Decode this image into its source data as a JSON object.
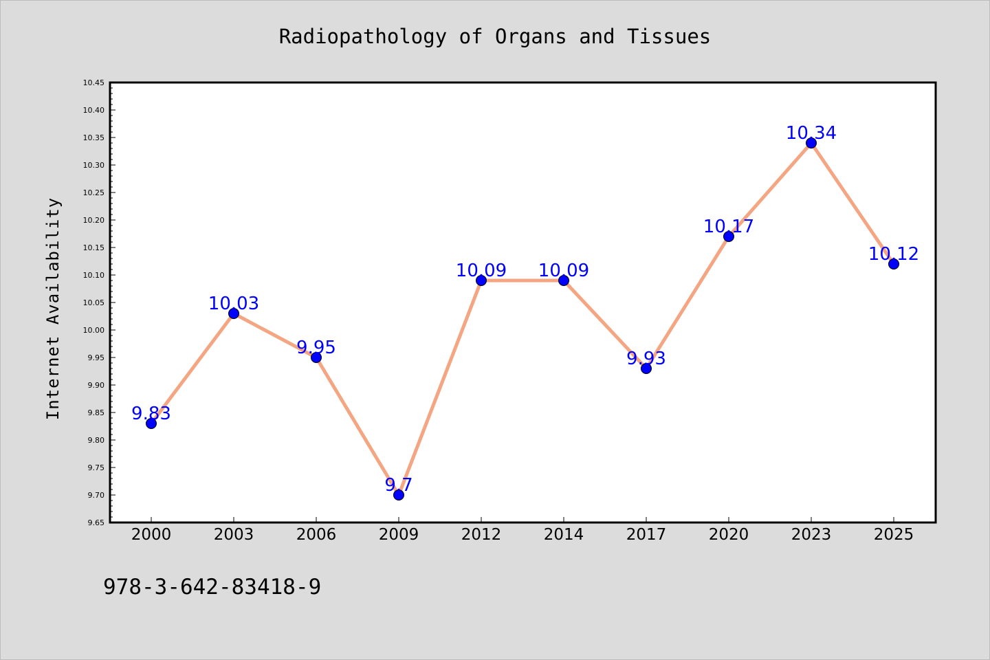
{
  "chart_data": {
    "type": "line",
    "title": "Radiopathology of Organs and Tissues",
    "xlabel": "",
    "ylabel": "Internet Availability",
    "categories": [
      "2000",
      "2003",
      "2006",
      "2009",
      "2012",
      "2014",
      "2017",
      "2020",
      "2023",
      "2025"
    ],
    "series": [
      {
        "values": [
          9.83,
          10.03,
          9.95,
          9.7,
          10.09,
          10.09,
          9.93,
          10.17,
          10.34,
          10.12
        ],
        "labels": [
          "9.83",
          "10.03",
          "9.95",
          "9.7",
          "10.09",
          "10.09",
          "9.93",
          "10.17",
          "10.34",
          "10.12"
        ],
        "line_color": "#f4a582",
        "marker_color": "#0000ff"
      }
    ],
    "ylim": [
      9.65,
      10.45
    ],
    "yticks": [
      "9.65",
      "9.70",
      "9.75",
      "9.80",
      "9.85",
      "9.90",
      "9.95",
      "10.00",
      "10.05",
      "10.10",
      "10.15",
      "10.20",
      "10.25",
      "10.30",
      "10.35",
      "10.40",
      "10.45"
    ],
    "grid": false,
    "legend": "none"
  },
  "footnote": "978-3-642-83418-9",
  "colors": {
    "background": "#dcdcdc",
    "plot_background": "#ffffff",
    "data_label": "#0000ff"
  }
}
